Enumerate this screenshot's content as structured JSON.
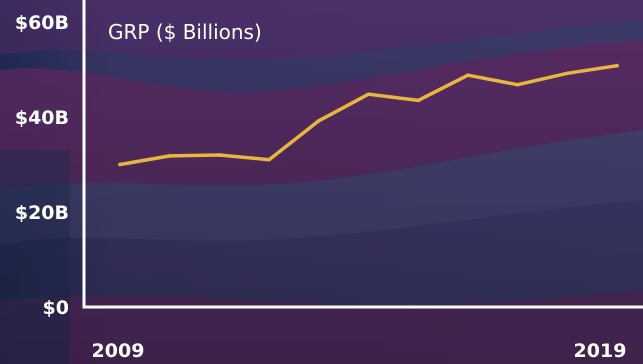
{
  "chart_data": {
    "type": "line",
    "title": "GRP ($ Billions)",
    "x": [
      2009,
      2010,
      2011,
      2012,
      2013,
      2014,
      2015,
      2016,
      2017,
      2018,
      2019
    ],
    "x_tick_labels": [
      "2009",
      "2019"
    ],
    "series": [
      {
        "values": [
          30.0,
          31.8,
          32.0,
          31.0,
          39.2,
          44.8,
          43.5,
          48.8,
          46.8,
          49.2,
          50.8
        ],
        "color": "#e8b63c"
      }
    ],
    "ylim": [
      0,
      60
    ],
    "y_ticks": [
      {
        "value": 0,
        "label": "$0"
      },
      {
        "value": 20,
        "label": "$20B"
      },
      {
        "value": 40,
        "label": "$40B"
      },
      {
        "value": 60,
        "label": "$60B"
      }
    ],
    "xlabel": "",
    "ylabel": "",
    "grid": false,
    "legend": "none",
    "colors": {
      "background": "#3a3466",
      "stripe": "#5a2a63",
      "axis": "#ffffff",
      "line": "#e8b63c",
      "text": "#ffffff"
    }
  }
}
